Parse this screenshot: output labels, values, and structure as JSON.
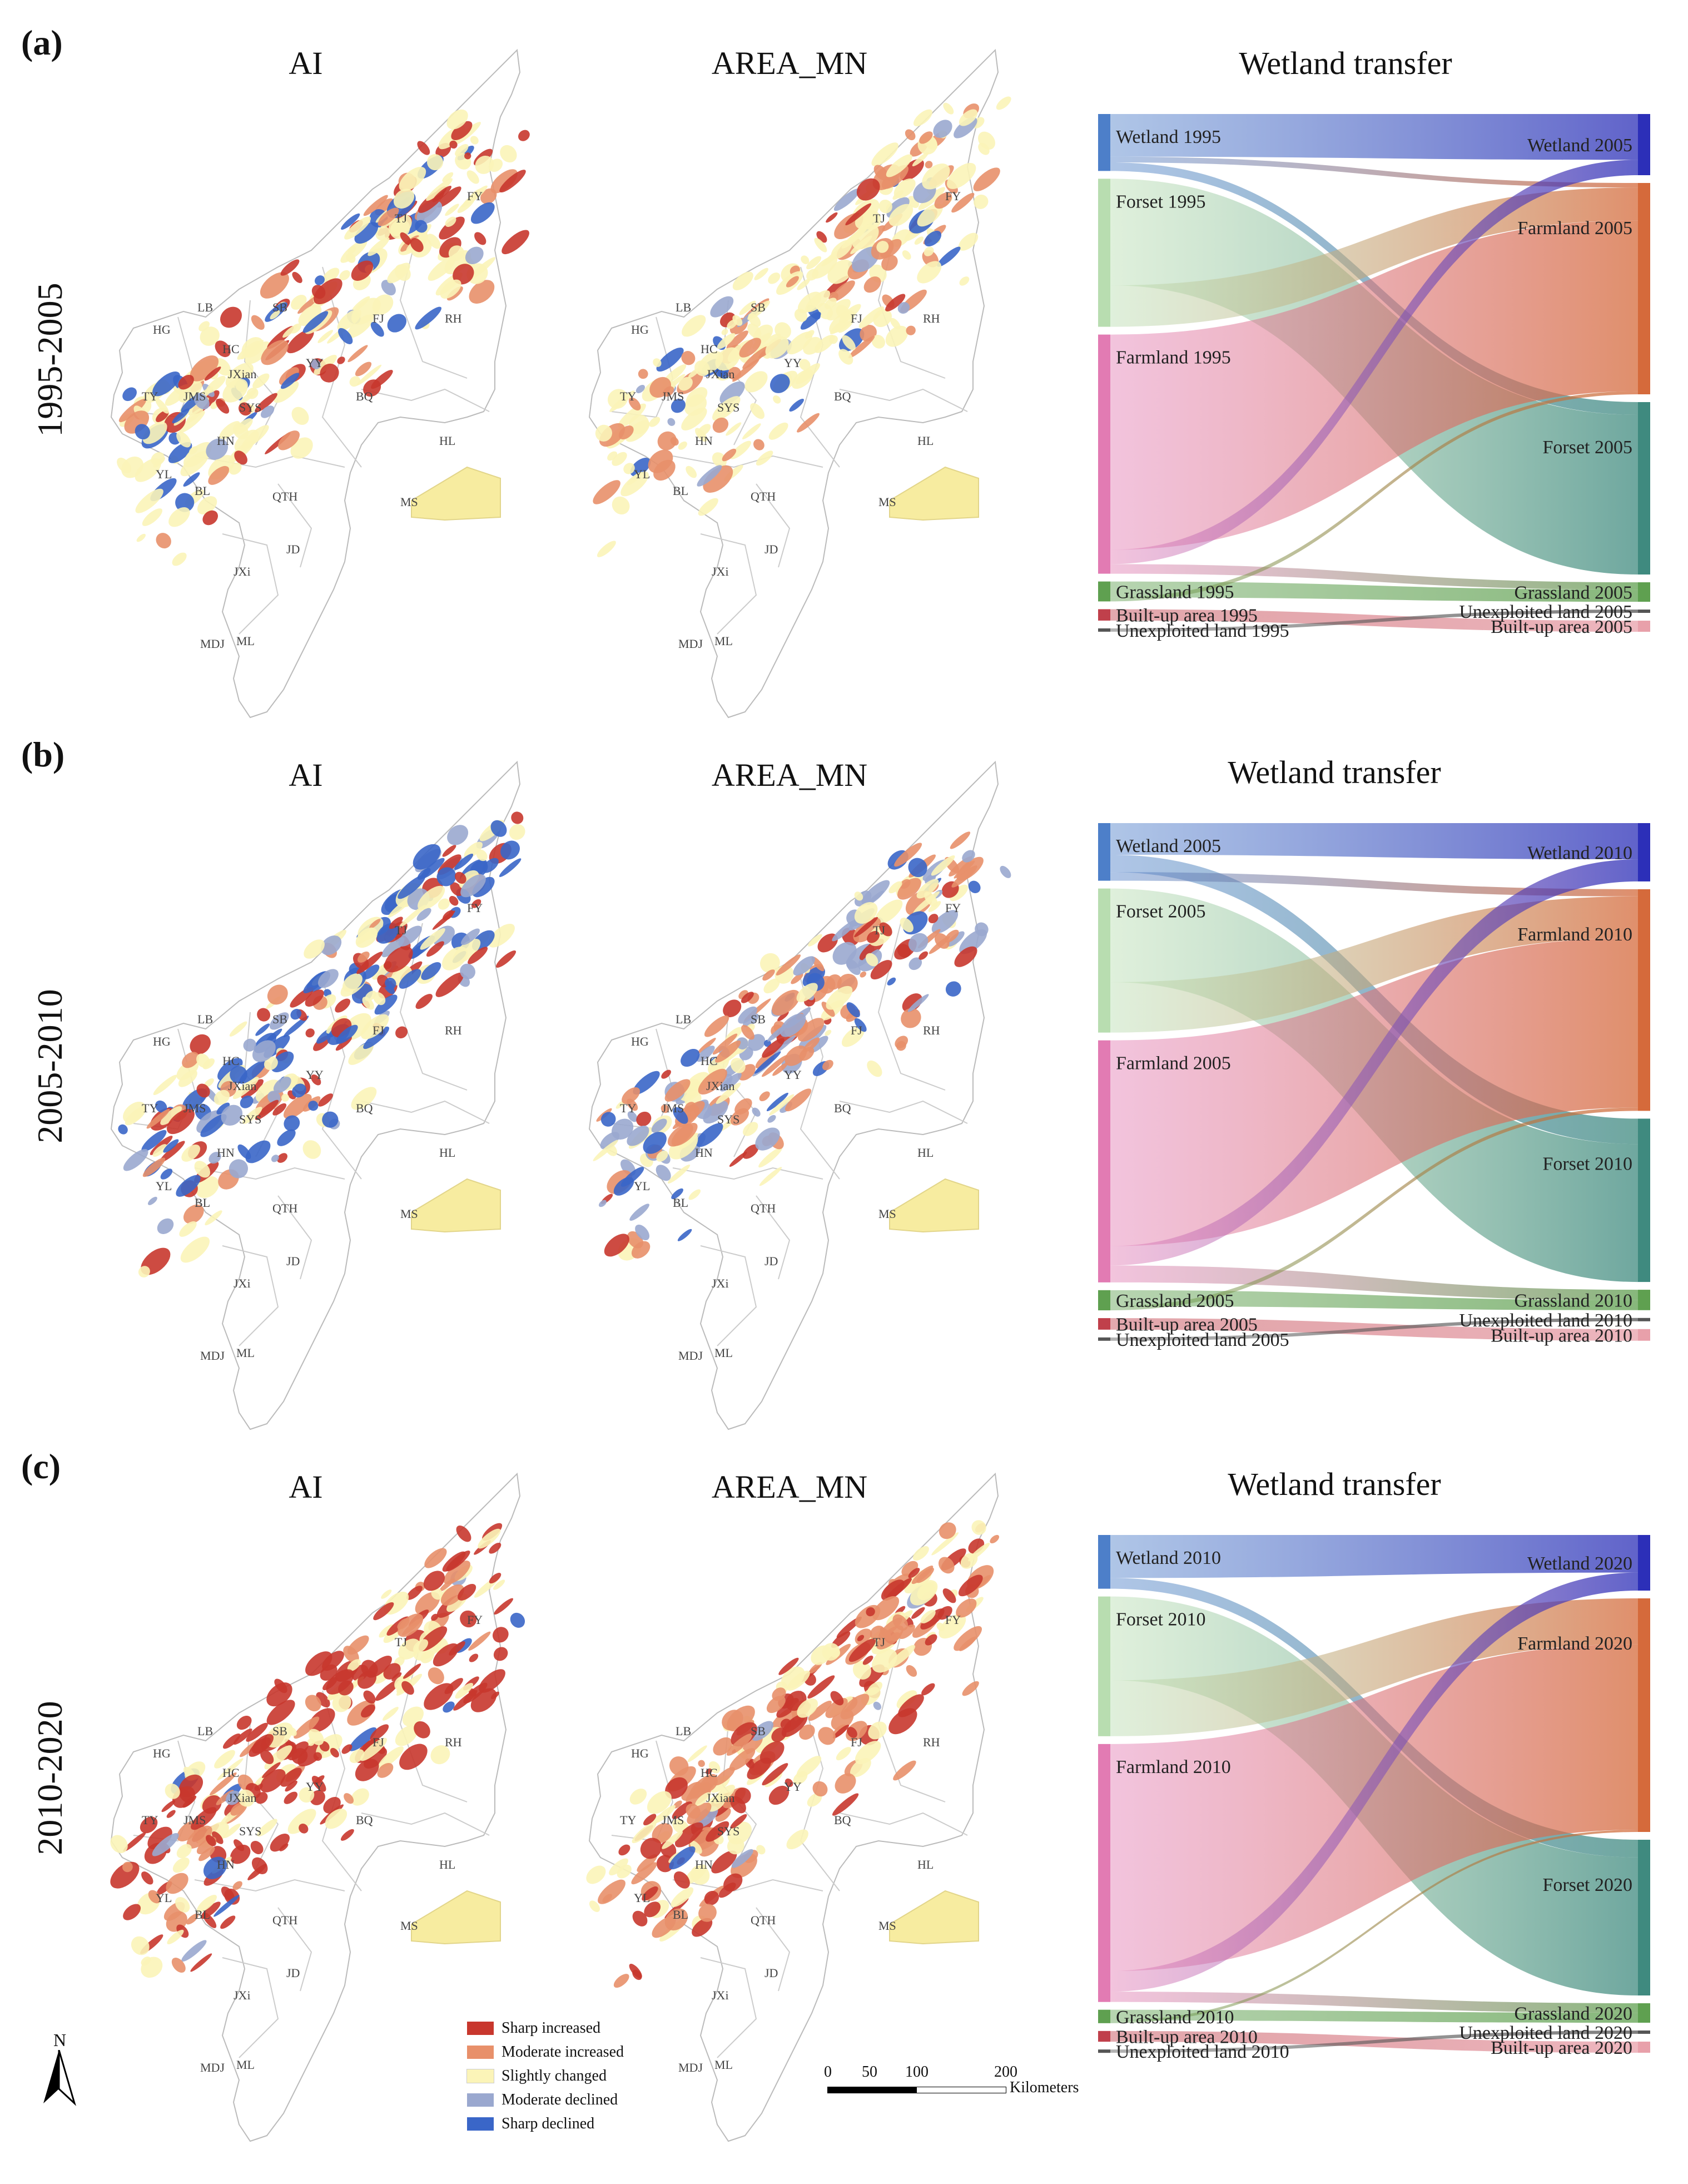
{
  "panels": [
    {
      "label": "(a)",
      "period": "1995-2005",
      "map_titles": [
        "AI",
        "AREA_MN"
      ],
      "sankey": {
        "title": "Wetland transfer",
        "left": [
          "Wetland 1995",
          "Forset 1995",
          "Farmland 1995",
          "Grassland 1995",
          "Built-up area 1995",
          "Unexploited land 1995"
        ],
        "right": [
          "Wetland 2005",
          "Farmland 2005",
          "Forset 2005",
          "Grassland 2005",
          "Unexploited land 2005",
          "Built-up area 2005"
        ]
      }
    },
    {
      "label": "(b)",
      "period": "2005-2010",
      "map_titles": [
        "AI",
        "AREA_MN"
      ],
      "sankey": {
        "title": "Wetland transfer",
        "left": [
          "Wetland 2005",
          "Forset 2005",
          "Farmland 2005",
          "Grassland 2005",
          "Built-up area 2005",
          "Unexploited land 2005"
        ],
        "right": [
          "Wetland 2010",
          "Farmland 2010",
          "Forset 2010",
          "Grassland 2010",
          "Unexploited land 2010",
          "Built-up area 2010"
        ]
      }
    },
    {
      "label": "(c)",
      "period": "2010-2020",
      "map_titles": [
        "AI",
        "AREA_MN"
      ],
      "sankey": {
        "title": "Wetland transfer",
        "left": [
          "Wetland 2010",
          "Forset 2010",
          "Farmland 2010",
          "Grassland 2010",
          "Built-up area 2010",
          "Unexploited land 2010"
        ],
        "right": [
          "Wetland 2020",
          "Farmland 2020",
          "Forset 2020",
          "Grassland 2020",
          "Unexploited land 2020",
          "Built-up area 2020"
        ]
      }
    }
  ],
  "county_labels": [
    "LB",
    "SB",
    "TJ",
    "FY",
    "RH",
    "FJ",
    "HG",
    "HC",
    "YY",
    "JXian",
    "TY",
    "JMS",
    "SYS",
    "BQ",
    "HN",
    "HL",
    "YL",
    "BL",
    "QTH",
    "MS",
    "JD",
    "JXi",
    "MDJ",
    "ML"
  ],
  "legend": {
    "items": [
      {
        "label": "Sharp increased",
        "color": "#c8372d"
      },
      {
        "label": "Moderate increased",
        "color": "#e8906a"
      },
      {
        "label": "Slightly changed",
        "color": "#fbf4b8"
      },
      {
        "label": "Moderate declined",
        "color": "#9aa8cf"
      },
      {
        "label": "Sharp declined",
        "color": "#3a66c8"
      }
    ]
  },
  "scale": {
    "ticks": [
      "0",
      "50",
      "100",
      "200"
    ],
    "unit": "Kilometers"
  },
  "north": "N",
  "colors": {
    "wetland": "#4d7fc9",
    "forest": "#b8ddb0",
    "farmland": "#e27bb3",
    "grassland": "#5fa050",
    "builtup": "#c0404b",
    "unexploited": "#555555",
    "wetland_right": "#2c2fb8",
    "farmland_right": "#d56a3b",
    "forest_right": "#3f8a7f"
  }
}
